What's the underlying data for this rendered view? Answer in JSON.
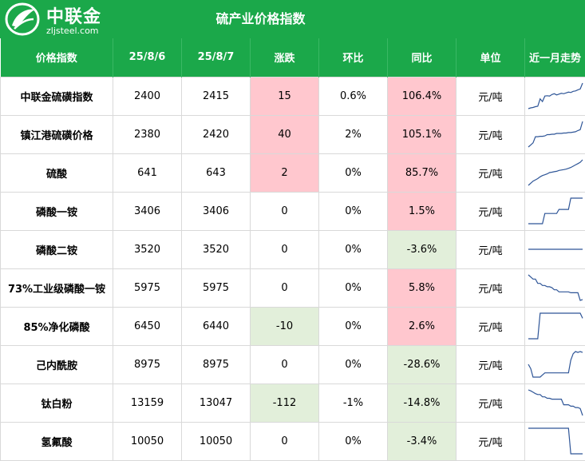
{
  "header": {
    "logo_name": "中联金",
    "logo_site": "zljsteel.com",
    "title": "硫产业价格指数"
  },
  "columns": [
    "价格指数",
    "25/8/6",
    "25/8/7",
    "涨跌",
    "环比",
    "同比",
    "单位",
    "近一月走势"
  ],
  "rows": [
    {
      "name": "中联金硫磺指数",
      "prev": "2400",
      "curr": "2415",
      "change": "15",
      "mom": "0.6%",
      "yoy": "106.4%",
      "unit": "元/吨",
      "change_dir": "up",
      "yoy_dir": "up",
      "trend": [
        1.0,
        1.2,
        1.3,
        1.5,
        1.6,
        3.5,
        2.8,
        4.2,
        4.3,
        4.2,
        4.6,
        4.8,
        4.5,
        4.7,
        4.9,
        4.8,
        5.0,
        5.2,
        5.1,
        5.4,
        5.5,
        5.8,
        6.0,
        7.5
      ]
    },
    {
      "name": "镇江港硫磺价格",
      "prev": "2380",
      "curr": "2420",
      "change": "40",
      "mom": "2%",
      "yoy": "105.1%",
      "unit": "元/吨",
      "change_dir": "up",
      "yoy_dir": "up",
      "trend": [
        1.0,
        1.5,
        2.0,
        3.5,
        3.5,
        3.6,
        3.6,
        3.7,
        4.0,
        4.0,
        4.1,
        4.1,
        4.3,
        4.3,
        4.3,
        4.4,
        4.4,
        4.5,
        4.5,
        4.6,
        4.7,
        5.0,
        5.2,
        7.2
      ]
    },
    {
      "name": "硫酸",
      "prev": "641",
      "curr": "643",
      "change": "2",
      "mom": "0%",
      "yoy": "85.7%",
      "unit": "元/吨",
      "change_dir": "up",
      "yoy_dir": "up",
      "trend": [
        1.0,
        1.5,
        2.0,
        2.3,
        2.6,
        3.0,
        3.3,
        3.5,
        3.7,
        4.0,
        4.1,
        4.2,
        4.3,
        4.5,
        4.6,
        4.7,
        4.8,
        5.0,
        5.2,
        5.5,
        5.8,
        6.1,
        6.4,
        7.0
      ]
    },
    {
      "name": "磷酸一铵",
      "prev": "3406",
      "curr": "3406",
      "change": "0",
      "mom": "0%",
      "yoy": "1.5%",
      "unit": "元/吨",
      "change_dir": "flat",
      "yoy_dir": "up",
      "trend": [
        1.0,
        1.0,
        1.0,
        1.0,
        1.0,
        1.0,
        1.0,
        3.0,
        3.0,
        3.0,
        3.0,
        3.0,
        3.0,
        3.8,
        3.8,
        3.8,
        3.8,
        3.8,
        6.0,
        6.0,
        6.0,
        6.0,
        6.0,
        6.0
      ]
    },
    {
      "name": "磷酸二铵",
      "prev": "3520",
      "curr": "3520",
      "change": "0",
      "mom": "0%",
      "yoy": "-3.6%",
      "unit": "元/吨",
      "change_dir": "flat",
      "yoy_dir": "down",
      "trend": [
        5.0,
        5.0,
        5.0,
        5.0,
        5.0,
        5.0,
        5.0,
        5.0,
        5.0,
        5.0,
        5.0,
        5.0,
        5.0,
        5.0,
        5.0,
        5.0,
        5.0,
        5.0,
        5.0,
        5.0,
        5.0,
        5.0,
        5.0,
        5.0
      ]
    },
    {
      "name": "73%工业级磷酸一铵",
      "prev": "5975",
      "curr": "5975",
      "change": "0",
      "mom": "0%",
      "yoy": "5.8%",
      "unit": "元/吨",
      "change_dir": "flat",
      "yoy_dir": "up",
      "trend": [
        7.0,
        6.5,
        6.0,
        6.0,
        5.0,
        5.0,
        4.5,
        4.5,
        4.2,
        4.2,
        4.0,
        3.5,
        3.5,
        3.0,
        3.0,
        3.0,
        3.0,
        3.0,
        2.8,
        2.8,
        2.8,
        2.8,
        1.0,
        1.2
      ]
    },
    {
      "name": "85%净化磷酸",
      "prev": "6450",
      "curr": "6440",
      "change": "-10",
      "mom": "0%",
      "yoy": "2.6%",
      "unit": "元/吨",
      "change_dir": "down",
      "yoy_dir": "up",
      "trend": [
        1.0,
        1.0,
        1.0,
        1.0,
        1.0,
        6.0,
        6.0,
        6.0,
        6.0,
        6.0,
        6.0,
        6.0,
        6.0,
        6.0,
        6.0,
        6.0,
        6.0,
        6.0,
        6.0,
        6.0,
        6.0,
        6.0,
        6.0,
        5.0
      ]
    },
    {
      "name": "己内酰胺",
      "prev": "8975",
      "curr": "8975",
      "change": "0",
      "mom": "0%",
      "yoy": "-28.6%",
      "unit": "元/吨",
      "change_dir": "flat",
      "yoy_dir": "down",
      "trend": [
        4.0,
        3.0,
        1.0,
        1.0,
        1.0,
        1.0,
        1.5,
        2.0,
        2.0,
        2.0,
        2.0,
        2.0,
        2.0,
        2.0,
        2.0,
        2.0,
        2.0,
        2.0,
        5.0,
        6.5,
        7.0,
        6.8,
        7.0,
        6.8
      ]
    },
    {
      "name": "钛白粉",
      "prev": "13159",
      "curr": "13047",
      "change": "-112",
      "mom": "-1%",
      "yoy": "-14.8%",
      "unit": "元/吨",
      "change_dir": "down",
      "yoy_dir": "down",
      "trend": [
        7.0,
        6.8,
        6.5,
        6.2,
        6.0,
        6.0,
        5.5,
        5.5,
        5.2,
        5.2,
        5.0,
        5.0,
        5.0,
        5.0,
        5.0,
        3.8,
        3.8,
        3.8,
        3.5,
        3.5,
        3.2,
        3.2,
        3.0,
        1.5
      ]
    },
    {
      "name": "氢氟酸",
      "prev": "10050",
      "curr": "10050",
      "change": "0",
      "mom": "0%",
      "yoy": "-3.4%",
      "unit": "元/吨",
      "change_dir": "flat",
      "yoy_dir": "down",
      "trend": [
        7.0,
        7.0,
        7.0,
        7.0,
        7.0,
        7.0,
        7.0,
        7.0,
        7.0,
        7.0,
        7.0,
        7.0,
        7.0,
        7.0,
        7.0,
        7.0,
        7.0,
        7.0,
        1.0,
        1.0,
        1.0,
        1.0,
        1.0,
        1.0
      ]
    }
  ],
  "colors": {
    "header_green": "#1ba84a",
    "up_fill": "#ffc7ce",
    "down_fill": "#e2efda",
    "spark_line": "#2e5597"
  },
  "icons": {
    "logo": "leaf-logo-icon"
  }
}
